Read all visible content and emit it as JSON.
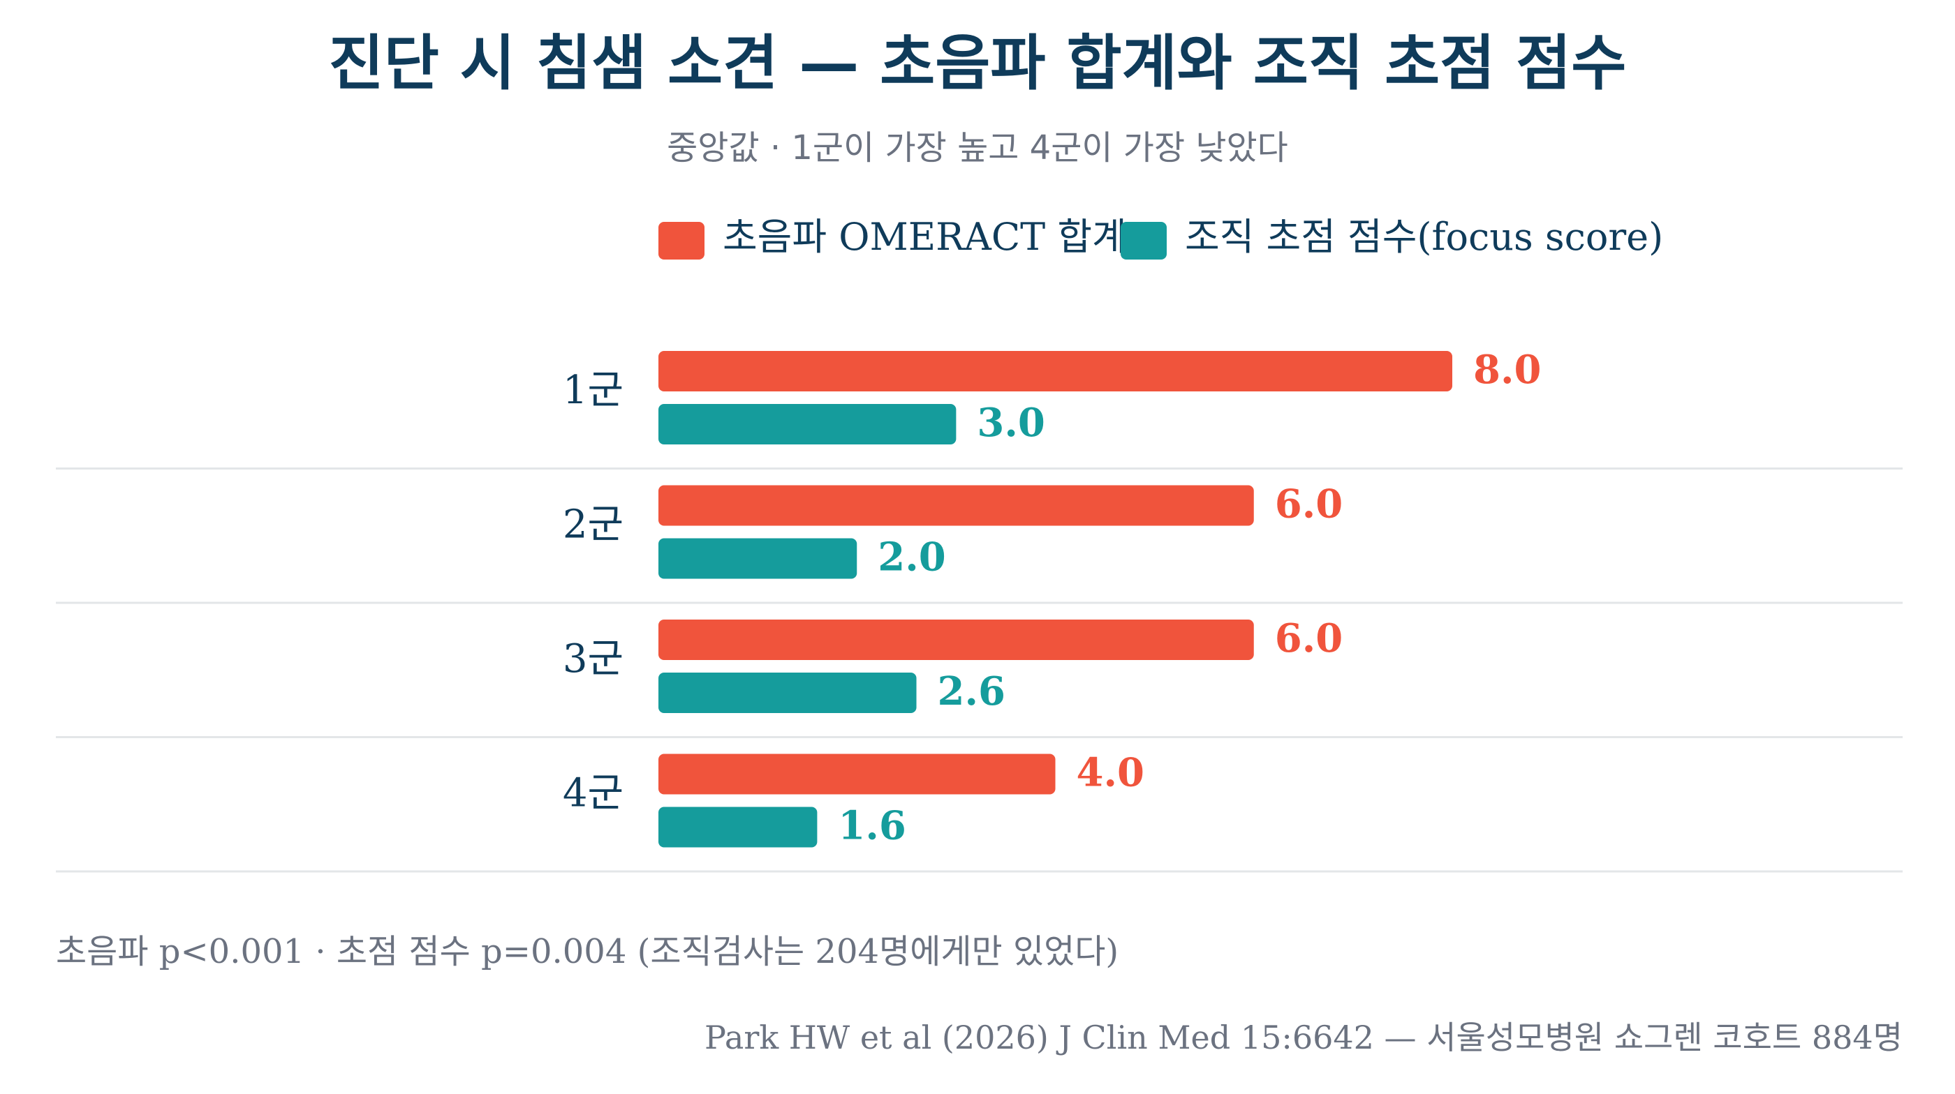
{
  "colors": {
    "background": "#ffffff",
    "title": "#0f3b5a",
    "muted": "#6b7280",
    "gridline": "#e3e6e8",
    "ultrasound": "#f0543c",
    "focus": "#159c9c"
  },
  "chart_data": {
    "type": "bar",
    "orientation": "horizontal",
    "title": "진단 시 침샘 소견 — 초음파 합계와 조직 초점 점수",
    "subtitle": "중앙값 · 1군이 가장 높고 4군이 가장 낮았다",
    "categories": [
      "1군",
      "2군",
      "3군",
      "4군"
    ],
    "series": [
      {
        "name": "초음파 OMERACT 합계",
        "values": [
          8.0,
          6.0,
          6.0,
          4.0
        ],
        "labels": [
          "8.0",
          "6.0",
          "6.0",
          "4.0"
        ],
        "color": "#f0543c"
      },
      {
        "name": "조직 초점 점수(focus score)",
        "values": [
          3.0,
          2.0,
          2.6,
          1.6
        ],
        "labels": [
          "3.0",
          "2.0",
          "2.6",
          "1.6"
        ],
        "color": "#159c9c"
      }
    ],
    "xlim": [
      0,
      8
    ],
    "grid": false,
    "legend_position": "top",
    "note": "초음파 p<0.001 · 초점 점수 p=0.004 (조직검사는 204명에게만 있었다)",
    "source": "Park HW et al (2026) J Clin Med 15:6642 — 서울성모병원 쇼그렌 코호트 884명"
  }
}
